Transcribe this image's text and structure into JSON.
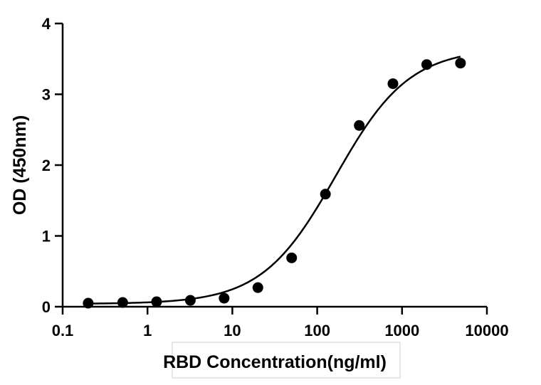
{
  "chart_data": {
    "type": "scatter",
    "title": "",
    "xlabel": "RBD Concentration(ng/ml)",
    "ylabel": "OD (450nm)",
    "x_scale": "log",
    "xlim": [
      0.1,
      10000
    ],
    "ylim": [
      0,
      4
    ],
    "x_ticks": [
      "0.1",
      "1",
      "10",
      "100",
      "1000",
      "10000"
    ],
    "y_ticks": [
      "0",
      "1",
      "2",
      "3",
      "4"
    ],
    "grid": false,
    "legend": "none",
    "series": [
      {
        "points": [
          {
            "x": 0.2,
            "y": 0.05
          },
          {
            "x": 0.51,
            "y": 0.06
          },
          {
            "x": 1.28,
            "y": 0.07
          },
          {
            "x": 3.2,
            "y": 0.09
          },
          {
            "x": 8,
            "y": 0.12
          },
          {
            "x": 20,
            "y": 0.27
          },
          {
            "x": 50,
            "y": 0.69
          },
          {
            "x": 125,
            "y": 1.59
          },
          {
            "x": 313,
            "y": 2.56
          },
          {
            "x": 781,
            "y": 3.15
          },
          {
            "x": 1953,
            "y": 3.42
          },
          {
            "x": 4883,
            "y": 3.44
          }
        ]
      }
    ],
    "fit_curve": {
      "type": "4PL",
      "bottom": 0.04,
      "top": 3.65,
      "ec50": 165,
      "hill": 1.0,
      "x_range": [
        0.2,
        4883
      ]
    }
  }
}
